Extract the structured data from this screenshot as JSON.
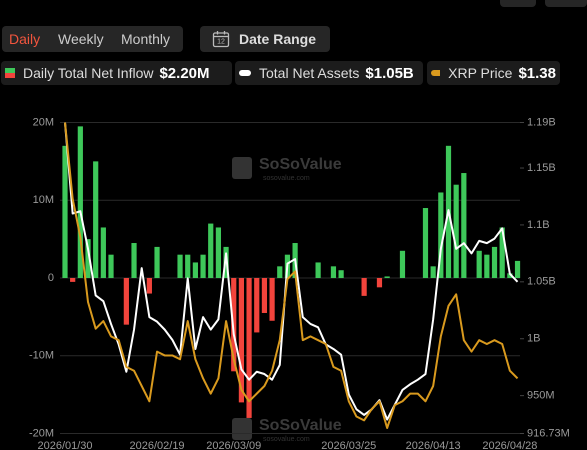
{
  "toolbar": {
    "tabs": [
      "Daily",
      "Weekly",
      "Monthly"
    ],
    "date_range": "Date Range",
    "calendar_day": "12"
  },
  "watermark": {
    "brand": "SoSoValue",
    "site": "sosovalue.com"
  },
  "chart_data": {
    "type": "combo",
    "categories": [
      "2026/01/30",
      null,
      null,
      null,
      null,
      null,
      null,
      null,
      null,
      null,
      null,
      null,
      "2026/02/19",
      null,
      null,
      null,
      null,
      null,
      null,
      null,
      null,
      null,
      "2026/03/09",
      null,
      null,
      null,
      null,
      null,
      null,
      null,
      null,
      null,
      null,
      null,
      null,
      null,
      null,
      "2026/03/25",
      null,
      null,
      null,
      null,
      null,
      null,
      null,
      null,
      null,
      null,
      "2026/04/13",
      null,
      null,
      null,
      null,
      null,
      null,
      null,
      null,
      null,
      "2026/04/28",
      null
    ],
    "ylim": [
      -20,
      20
    ],
    "yticks": [
      {
        "value": 20,
        "label": "20M"
      },
      {
        "value": 10,
        "label": "10M"
      },
      {
        "value": 0,
        "label": "0"
      },
      {
        "value": -10,
        "label": "-10M"
      },
      {
        "value": -20,
        "label": "-20M"
      }
    ],
    "y2lim": [
      916.73,
      1190
    ],
    "y2ticks": [
      {
        "value": 1190,
        "label": "1.19B"
      },
      {
        "value": 1150,
        "label": "1.15B"
      },
      {
        "value": 1100,
        "label": "1.1B"
      },
      {
        "value": 1050,
        "label": "1.05B"
      },
      {
        "value": 1000,
        "label": "1B"
      },
      {
        "value": 950,
        "label": "950M"
      },
      {
        "value": 916.73,
        "label": "916.73M"
      }
    ],
    "grid": true,
    "series": [
      {
        "name": "Daily Total Net Inflow",
        "legend_value": "$2.20M",
        "type": "bar",
        "color": "#3ec85a",
        "negative_color": "#f2443c",
        "values": [
          17,
          -0.5,
          19.5,
          5,
          15,
          6.5,
          3,
          0,
          -6,
          4.5,
          0,
          -2,
          4,
          0,
          0,
          3,
          3,
          2,
          3,
          7,
          6.5,
          4,
          -12,
          -16,
          -18,
          -7,
          -4.5,
          -5.5,
          1.5,
          3,
          4.5,
          0,
          0,
          2,
          0,
          1.5,
          1,
          0,
          0,
          -2.3,
          0,
          -1.2,
          0.2,
          0,
          3.5,
          0,
          0,
          9,
          1.5,
          11,
          17,
          12,
          13.5,
          0,
          3.5,
          3,
          4,
          6.5,
          0.6,
          2.2
        ]
      },
      {
        "name": "Total Net Assets",
        "legend_value": "$1.05B",
        "type": "line",
        "axis": "y2",
        "color": "#ffffff",
        "values": [
          1190,
          1110,
          1112,
          1079,
          1038,
          1033,
          1013,
          995,
          971,
          1008,
          1062,
          1019,
          1015,
          1008,
          999,
          986,
          1053,
          991,
          1019,
          1008,
          1017,
          1075,
          1004,
          973,
          964,
          971,
          969,
          964,
          977,
          1066,
          1070,
          1019,
          1013,
          1010,
          995,
          991,
          986,
          951,
          938,
          933,
          938,
          946,
          929,
          942,
          955,
          960,
          964,
          969,
          1017,
          1079,
          1113,
          1079,
          1084,
          1075,
          1086,
          1084,
          1088,
          1097,
          1057,
          1050
        ]
      },
      {
        "name": "XRP Price",
        "legend_value": "$1.38",
        "type": "line",
        "axis": "none",
        "color": "#d99a1e",
        "values": [
          2.05,
          1.85,
          1.75,
          1.58,
          1.51,
          1.53,
          1.49,
          1.48,
          1.41,
          1.4,
          1.36,
          1.32,
          1.45,
          1.44,
          1.44,
          1.43,
          1.53,
          1.43,
          1.38,
          1.34,
          1.38,
          1.53,
          1.43,
          1.35,
          1.32,
          1.34,
          1.36,
          1.4,
          1.48,
          1.64,
          1.66,
          1.48,
          1.49,
          1.48,
          1.47,
          1.41,
          1.4,
          1.32,
          1.28,
          1.27,
          1.3,
          1.32,
          1.25,
          1.31,
          1.32,
          1.34,
          1.34,
          1.32,
          1.36,
          1.49,
          1.57,
          1.6,
          1.48,
          1.45,
          1.48,
          1.47,
          1.48,
          1.47,
          1.4,
          1.38
        ]
      }
    ]
  }
}
